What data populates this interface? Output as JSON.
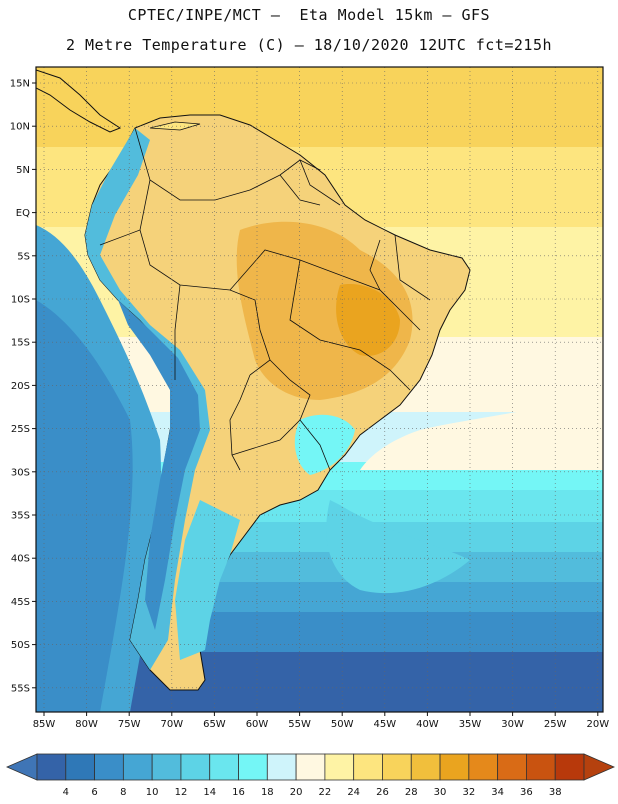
{
  "header": {
    "line1": "CPTEC/INPE/MCT –  Eta Model 15km – GFS",
    "line2": "2 Metre Temperature (C) – 18/10/2020 12UTC fct=215h"
  },
  "map": {
    "lat_ticks": [
      "15N",
      "10N",
      "5N",
      "EQ",
      "5S",
      "10S",
      "15S",
      "20S",
      "25S",
      "30S",
      "35S",
      "40S",
      "45S",
      "50S",
      "55S"
    ],
    "lon_ticks": [
      "85W",
      "80W",
      "75W",
      "70W",
      "65W",
      "60W",
      "55W",
      "50W",
      "45W",
      "40W",
      "35W",
      "30W",
      "25W",
      "20W"
    ],
    "land_fill": "#f5d27a",
    "land_hot": "#efb64a",
    "coast_color": "#111111"
  },
  "colorbar": {
    "labels": [
      "4",
      "6",
      "8",
      "10",
      "12",
      "14",
      "16",
      "18",
      "20",
      "22",
      "24",
      "26",
      "28",
      "30",
      "32",
      "34",
      "36",
      "38"
    ],
    "colors": [
      "#3463a8",
      "#2f78b7",
      "#3a8ec8",
      "#45a6d4",
      "#52bcdc",
      "#5dd3e6",
      "#6ae6ee",
      "#74f6f6",
      "#cff4fb",
      "#fff8e1",
      "#fef3a5",
      "#fde57f",
      "#f8d35b",
      "#f1bf3c",
      "#eaa41f",
      "#e5891b",
      "#d96b16",
      "#c95310",
      "#b8390b"
    ],
    "end_left": "#3f75b6",
    "end_right": "#b5410e"
  }
}
